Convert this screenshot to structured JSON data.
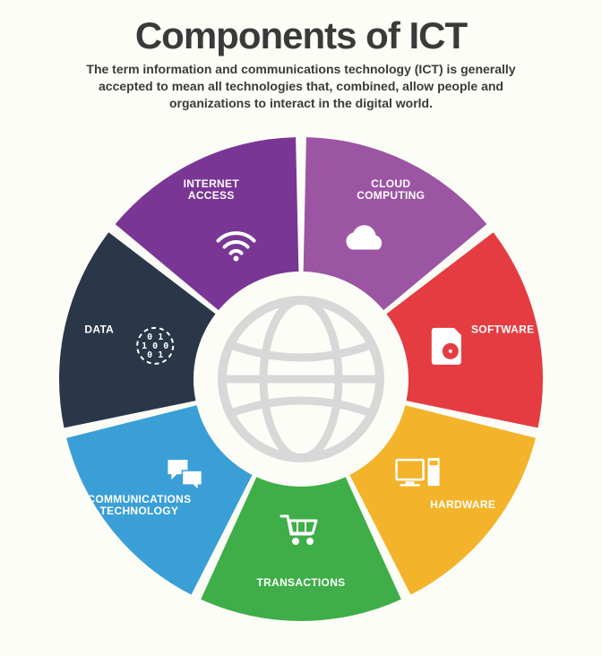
{
  "header": {
    "title": "Components of ICT",
    "subtitle": "The term information and communications technology (ICT) is generally accepted to mean all technologies that, combined, allow people and organizations to interact in the digital world."
  },
  "chart": {
    "type": "donut-segmented-infographic",
    "background_color": "#fdfdf8",
    "outer_radius": 270,
    "inner_radius": 120,
    "gap_deg": 2.5,
    "center_icon": "globe",
    "center_icon_color": "#d8d8d8",
    "segments": [
      {
        "key": "cloud",
        "label_lines": [
          "CLOUD",
          "COMPUTING"
        ],
        "color": "#9c55a3",
        "icon": "cloud",
        "start_deg": -90,
        "end_deg": -38.571
      },
      {
        "key": "software",
        "label_lines": [
          "SOFTWARE"
        ],
        "color": "#e43c41",
        "icon": "disc",
        "start_deg": -38.571,
        "end_deg": 12.857
      },
      {
        "key": "hardware",
        "label_lines": [
          "HARDWARE"
        ],
        "color": "#f3b32a",
        "icon": "computer",
        "start_deg": 12.857,
        "end_deg": 64.286
      },
      {
        "key": "trans",
        "label_lines": [
          "TRANSACTIONS"
        ],
        "color": "#3fae49",
        "icon": "cart",
        "start_deg": 64.286,
        "end_deg": 115.714
      },
      {
        "key": "comms",
        "label_lines": [
          "COMMUNICATIONS",
          "TECHNOLOGY"
        ],
        "color": "#3a9fd6",
        "icon": "chat",
        "start_deg": 115.714,
        "end_deg": 167.143
      },
      {
        "key": "data",
        "label_lines": [
          "DATA"
        ],
        "color": "#2a3748",
        "icon": "binary",
        "start_deg": 167.143,
        "end_deg": 218.571
      },
      {
        "key": "internet",
        "label_lines": [
          "INTERNET",
          "ACCESS"
        ],
        "color": "#7a3694",
        "icon": "wifi",
        "start_deg": 218.571,
        "end_deg": 270
      }
    ],
    "label_color": "#ffffff",
    "label_fontsize": 12,
    "icon_color": "#ffffff"
  }
}
